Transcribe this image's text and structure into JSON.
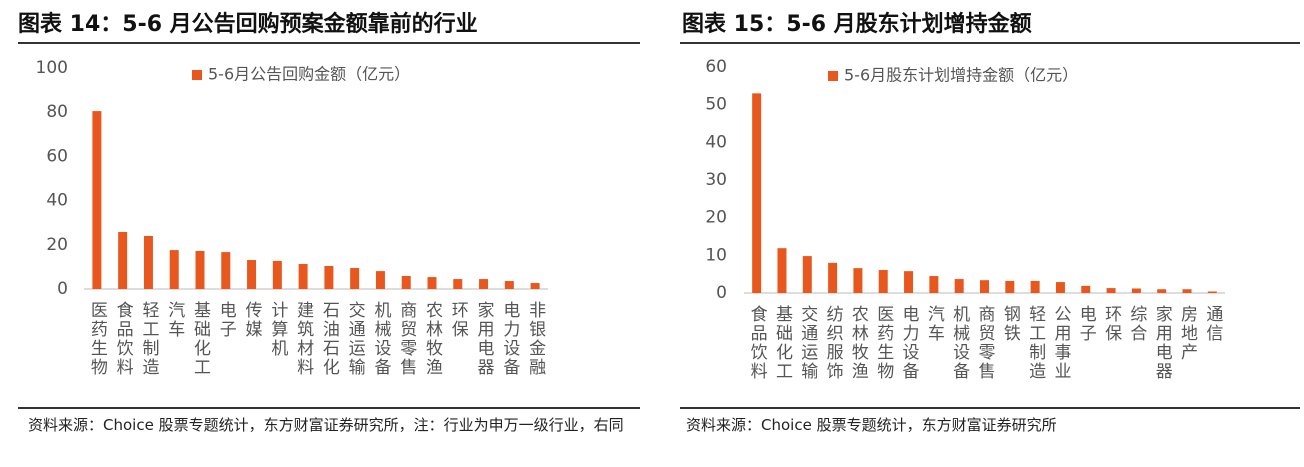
{
  "chart_data": [
    {
      "type": "bar",
      "title": "图表 14：5-6 月公告回购预案金额靠前的行业",
      "categories": [
        "医药生物",
        "食品饮料",
        "轻工制造",
        "汽车",
        "基础化工",
        "电子",
        "传媒",
        "计算机",
        "建筑材料",
        "石油石化",
        "交通运输",
        "机械设备",
        "商贸零售",
        "农林牧渔",
        "环保",
        "家用电器",
        "电力设备",
        "非银金融"
      ],
      "series": [
        {
          "name": "5-6月公告回购金额（亿元）",
          "color": "#e8571e",
          "values": [
            80.5,
            25.8,
            24,
            17.6,
            17.2,
            16.7,
            13.1,
            12.7,
            11.3,
            10.4,
            9.5,
            8.1,
            5.9,
            5.4,
            4.5,
            4.5,
            3.6,
            2.7
          ]
        }
      ],
      "ylim": [
        0,
        100
      ],
      "yticks": [
        0,
        20,
        40,
        60,
        80,
        100
      ],
      "source": "资料来源：Choice 股票专题统计，东方财富证券研究所，注：行业为申万一级行业，右同"
    },
    {
      "type": "bar",
      "title": "图表 15：5-6 月股东计划增持金额",
      "categories": [
        "食品饮料",
        "基础化工",
        "交通运输",
        "纺织服饰",
        "农林牧渔",
        "医药生物",
        "电力设备",
        "汽车",
        "机械设备",
        "商贸零售",
        "钢铁",
        "轻工制造",
        "公用事业",
        "电子",
        "环保",
        "综合",
        "家用电器",
        "房地产",
        "通信"
      ],
      "series": [
        {
          "name": "5-6月股东计划增持金额（亿元）",
          "color": "#e8571e",
          "values": [
            53,
            11.9,
            9.8,
            8,
            6.6,
            6.1,
            5.8,
            4.5,
            3.7,
            3.4,
            3.2,
            3.2,
            2.9,
            1.9,
            1.3,
            1.2,
            1.0,
            1.0,
            0.4
          ]
        }
      ],
      "ylim": [
        0,
        60
      ],
      "yticks": [
        0,
        10,
        20,
        30,
        40,
        50,
        60
      ],
      "source": "资料来源：Choice 股票专题统计，东方财富证券研究所"
    }
  ]
}
